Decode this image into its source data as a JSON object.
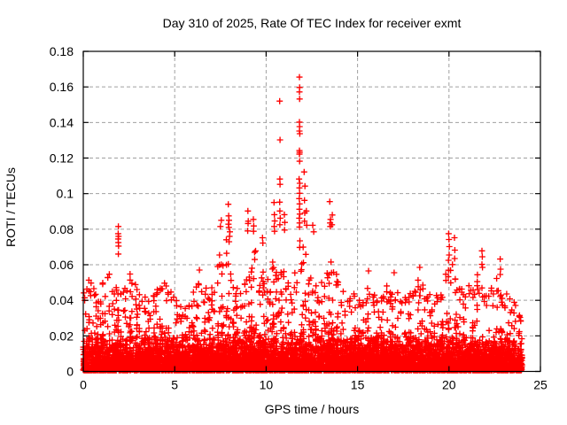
{
  "chart_data": {
    "type": "scatter",
    "title": "Day 310 of 2025, Rate Of TEC Index for receiver exmt",
    "xlabel": "GPS time / hours",
    "ylabel": "ROTI / TECUs",
    "xlim": [
      0,
      25
    ],
    "ylim": [
      0,
      0.18
    ],
    "xticks": [
      {
        "v": 0,
        "label": "0"
      },
      {
        "v": 5,
        "label": "5"
      },
      {
        "v": 10,
        "label": "10"
      },
      {
        "v": 15,
        "label": "15"
      },
      {
        "v": 20,
        "label": "20"
      },
      {
        "v": 25,
        "label": "25"
      }
    ],
    "yticks": [
      {
        "v": 0,
        "label": "0"
      },
      {
        "v": 0.02,
        "label": "0.02"
      },
      {
        "v": 0.04,
        "label": "0.04"
      },
      {
        "v": 0.06,
        "label": "0.06"
      },
      {
        "v": 0.08,
        "label": "0.08"
      },
      {
        "v": 0.1,
        "label": "0.1"
      },
      {
        "v": 0.12,
        "label": "0.12"
      },
      {
        "v": 0.14,
        "label": "0.14"
      },
      {
        "v": 0.16,
        "label": "0.16"
      },
      {
        "v": 0.18,
        "label": "0.18"
      }
    ],
    "grid": {
      "visible": true,
      "style": "dashed",
      "color": "#a0a0a0"
    },
    "marker": {
      "shape": "plus",
      "color": "#ff0000"
    },
    "legend": "none",
    "series": [
      {
        "name": "ROTI",
        "t_range_hours": [
          0,
          24
        ],
        "bin_width_hours": 0.25,
        "band_top": [
          0.05,
          0.055,
          0.048,
          0.042,
          0.05,
          0.055,
          0.048,
          0.05,
          0.045,
          0.048,
          0.055,
          0.05,
          0.045,
          0.042,
          0.04,
          0.045,
          0.048,
          0.055,
          0.05,
          0.045,
          0.04,
          0.038,
          0.036,
          0.04,
          0.048,
          0.055,
          0.048,
          0.042,
          0.05,
          0.06,
          0.07,
          0.075,
          0.06,
          0.05,
          0.045,
          0.055,
          0.065,
          0.07,
          0.055,
          0.06,
          0.055,
          0.065,
          0.06,
          0.065,
          0.05,
          0.045,
          0.06,
          0.075,
          0.07,
          0.055,
          0.05,
          0.045,
          0.05,
          0.06,
          0.065,
          0.055,
          0.045,
          0.04,
          0.042,
          0.045,
          0.04,
          0.045,
          0.05,
          0.048,
          0.042,
          0.045,
          0.05,
          0.05,
          0.045,
          0.04,
          0.042,
          0.045,
          0.048,
          0.055,
          0.05,
          0.045,
          0.042,
          0.045,
          0.05,
          0.06,
          0.062,
          0.055,
          0.05,
          0.048,
          0.05,
          0.048,
          0.055,
          0.052,
          0.045,
          0.048,
          0.055,
          0.052,
          0.045,
          0.042,
          0.04,
          0.038
        ],
        "outliers": [
          [
            1.92,
            0.0815
          ],
          [
            1.91,
            0.0775
          ],
          [
            1.93,
            0.076
          ],
          [
            1.91,
            0.0745
          ],
          [
            1.92,
            0.0725
          ],
          [
            1.93,
            0.0705
          ],
          [
            1.92,
            0.066
          ],
          [
            6.35,
            0.057
          ],
          [
            7.45,
            0.0655
          ],
          [
            7.55,
            0.085
          ],
          [
            7.5,
            0.0815
          ],
          [
            7.93,
            0.094
          ],
          [
            7.95,
            0.0875
          ],
          [
            7.97,
            0.085
          ],
          [
            7.94,
            0.0828
          ],
          [
            7.96,
            0.081
          ],
          [
            8.02,
            0.0785
          ],
          [
            8.0,
            0.076
          ],
          [
            9.0,
            0.0902
          ],
          [
            9.02,
            0.0845
          ],
          [
            9.01,
            0.0832
          ],
          [
            8.99,
            0.079
          ],
          [
            9.3,
            0.0855
          ],
          [
            9.32,
            0.0818
          ],
          [
            9.31,
            0.0788
          ],
          [
            9.8,
            0.0752
          ],
          [
            9.82,
            0.0722
          ],
          [
            10.43,
            0.095
          ],
          [
            10.45,
            0.0882
          ],
          [
            10.47,
            0.0846
          ],
          [
            10.44,
            0.0815
          ],
          [
            10.46,
            0.0788
          ],
          [
            10.74,
            0.152
          ],
          [
            10.76,
            0.1302
          ],
          [
            10.75,
            0.1082
          ],
          [
            10.76,
            0.1052
          ],
          [
            10.74,
            0.0952
          ],
          [
            10.75,
            0.0902
          ],
          [
            10.77,
            0.0862
          ],
          [
            10.75,
            0.0825
          ],
          [
            11.0,
            0.0882
          ],
          [
            11.02,
            0.0838
          ],
          [
            11.01,
            0.0795
          ],
          [
            11.82,
            0.1655
          ],
          [
            11.83,
            0.1597
          ],
          [
            11.82,
            0.1572
          ],
          [
            11.83,
            0.1532
          ],
          [
            11.82,
            0.1402
          ],
          [
            11.83,
            0.1377
          ],
          [
            11.82,
            0.1352
          ],
          [
            11.84,
            0.1337
          ],
          [
            11.82,
            0.1242
          ],
          [
            11.83,
            0.1232
          ],
          [
            11.82,
            0.1222
          ],
          [
            11.83,
            0.1182
          ],
          [
            11.8,
            0.1082
          ],
          [
            11.84,
            0.1058
          ],
          [
            11.82,
            0.1032
          ],
          [
            11.83,
            0.1002
          ],
          [
            11.81,
            0.0972
          ],
          [
            11.83,
            0.0942
          ],
          [
            11.82,
            0.0912
          ],
          [
            11.84,
            0.0885
          ],
          [
            11.81,
            0.0862
          ],
          [
            11.83,
            0.0835
          ],
          [
            11.82,
            0.0812
          ],
          [
            12.08,
            0.1122
          ],
          [
            12.12,
            0.1042
          ],
          [
            12.1,
            0.0962
          ],
          [
            12.11,
            0.0892
          ],
          [
            12.1,
            0.0845
          ],
          [
            12.2,
            0.0902
          ],
          [
            12.22,
            0.0822
          ],
          [
            12.55,
            0.0822
          ],
          [
            12.6,
            0.0785
          ],
          [
            13.48,
            0.0955
          ],
          [
            13.52,
            0.0855
          ],
          [
            13.5,
            0.0835
          ],
          [
            13.51,
            0.0815
          ],
          [
            13.62,
            0.088
          ],
          [
            13.6,
            0.0825
          ],
          [
            15.6,
            0.0565
          ],
          [
            17.0,
            0.0555
          ],
          [
            18.4,
            0.0585
          ],
          [
            19.98,
            0.0775
          ],
          [
            20.0,
            0.0742
          ],
          [
            20.02,
            0.0702
          ],
          [
            20.01,
            0.0655
          ],
          [
            19.97,
            0.0625
          ],
          [
            20.3,
            0.0752
          ],
          [
            20.32,
            0.0682
          ],
          [
            20.31,
            0.0635
          ],
          [
            21.8,
            0.0678
          ],
          [
            21.82,
            0.0645
          ],
          [
            21.8,
            0.0602
          ],
          [
            21.83,
            0.0585
          ],
          [
            22.8,
            0.0632
          ],
          [
            22.82,
            0.0575
          ],
          [
            22.8,
            0.0545
          ]
        ]
      }
    ],
    "render": {
      "seed": 310,
      "base_per_bin": 48,
      "mid_per_bin": 30,
      "tip_per_bin": 3
    }
  }
}
